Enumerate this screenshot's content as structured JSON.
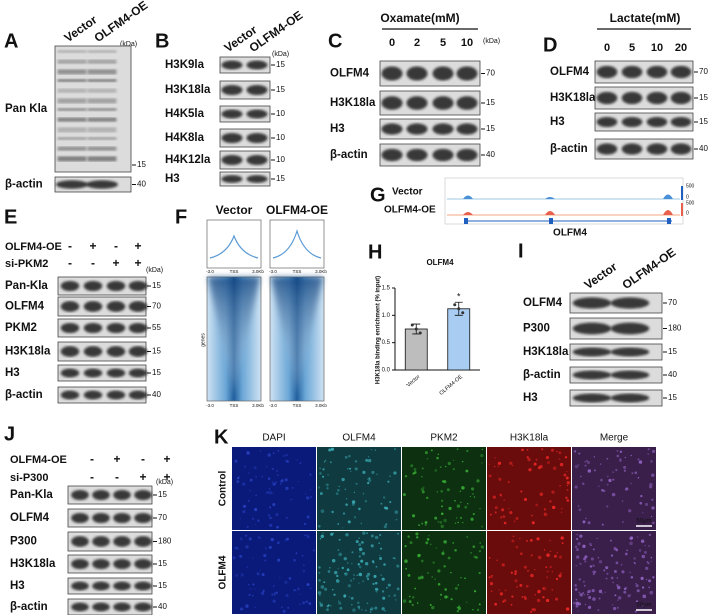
{
  "panels": {
    "A": {
      "label": "A",
      "lanes": [
        "Vector",
        "OLFM4-OE"
      ],
      "unit": "(kDa)",
      "rows": [
        {
          "name": "Pan Kla",
          "marker": "15"
        },
        {
          "name": "β-actin",
          "marker": "40"
        }
      ]
    },
    "B": {
      "label": "B",
      "lanes": [
        "Vector",
        "OLFM4-OE"
      ],
      "unit": "(kDa)",
      "rows": [
        {
          "name": "H3K9la",
          "marker": "15"
        },
        {
          "name": "H3K18la",
          "marker": "15"
        },
        {
          "name": "H4K5la",
          "marker": "10"
        },
        {
          "name": "H4K8la",
          "marker": "10"
        },
        {
          "name": "H4K12la",
          "marker": "10"
        },
        {
          "name": "H3",
          "marker": "15"
        }
      ]
    },
    "C": {
      "label": "C",
      "treatment": "Oxamate(mM)",
      "lanes": [
        "0",
        "2",
        "5",
        "10"
      ],
      "unit": "(kDa)",
      "rows": [
        {
          "name": "OLFM4",
          "marker": "70"
        },
        {
          "name": "H3K18la",
          "marker": "15"
        },
        {
          "name": "H3",
          "marker": "15"
        },
        {
          "name": "β-actin",
          "marker": "40"
        }
      ]
    },
    "D": {
      "label": "D",
      "treatment": "Lactate(mM)",
      "lanes": [
        "0",
        "5",
        "10",
        "20"
      ],
      "rows": [
        {
          "name": "OLFM4",
          "marker": "70"
        },
        {
          "name": "H3K18la",
          "marker": "15"
        },
        {
          "name": "H3",
          "marker": "15"
        },
        {
          "name": "β-actin",
          "marker": "40"
        }
      ]
    },
    "E": {
      "label": "E",
      "conditions": [
        {
          "name": "OLFM4-OE",
          "signs": [
            "-",
            "+",
            "-",
            "+"
          ]
        },
        {
          "name": "si-PKM2",
          "signs": [
            "-",
            "-",
            "+",
            "+"
          ]
        }
      ],
      "unit": "(kDa)",
      "rows": [
        {
          "name": "Pan-Kla",
          "marker": "15"
        },
        {
          "name": "OLFM4",
          "marker": "70"
        },
        {
          "name": "PKM2",
          "marker": "55"
        },
        {
          "name": "H3K18la",
          "marker": "15"
        },
        {
          "name": "H3",
          "marker": "15"
        },
        {
          "name": "β-actin",
          "marker": "40"
        }
      ]
    },
    "F": {
      "label": "F",
      "groups": [
        "Vector",
        "OLFM4-OE"
      ],
      "axis": [
        "-3.0",
        "TSS",
        "3.0Kb"
      ],
      "row_label": "genes"
    },
    "G": {
      "label": "G",
      "tracks": [
        "Vector",
        "OLFM4-OE"
      ],
      "scale": [
        "500",
        "0",
        "500",
        "0"
      ],
      "gene": "OLFM4"
    },
    "H": {
      "label": "H",
      "chart": {
        "type": "bar",
        "title": "OLFM4",
        "y_label": "H3K18la binding enrichment (% input)",
        "categories": [
          "Vector",
          "OLFM4-OE"
        ],
        "values": [
          0.75,
          1.12
        ],
        "errors": [
          0.09,
          0.12
        ],
        "colors": [
          "#bdbdbd",
          "#a9cdf2"
        ],
        "ylim": [
          0,
          1.5
        ],
        "yticks": [
          {
            "value": 0,
            "label": "0.0"
          },
          {
            "value": 0.5,
            "label": "0.5"
          },
          {
            "value": 1,
            "label": "1.0"
          },
          {
            "value": 1.5,
            "label": "1.5"
          }
        ],
        "annotation": "*"
      }
    },
    "I": {
      "label": "I",
      "lanes": [
        "Vector",
        "OLFM4-OE"
      ],
      "rows": [
        {
          "name": "OLFM4",
          "marker": "70"
        },
        {
          "name": "P300",
          "marker": "180"
        },
        {
          "name": "H3K18la",
          "marker": "15"
        },
        {
          "name": "β-actin",
          "marker": "40"
        },
        {
          "name": "H3",
          "marker": "15"
        }
      ]
    },
    "J": {
      "label": "J",
      "conditions": [
        {
          "name": "OLFM4-OE",
          "signs": [
            "-",
            "+",
            "-",
            "+"
          ]
        },
        {
          "name": "si-P300",
          "signs": [
            "-",
            "-",
            "+",
            "+"
          ]
        }
      ],
      "unit": "(kDa)",
      "rows": [
        {
          "name": "Pan-Kla",
          "marker": "15"
        },
        {
          "name": "OLFM4",
          "marker": "70"
        },
        {
          "name": "P300",
          "marker": "180"
        },
        {
          "name": "H3K18la",
          "marker": "15"
        },
        {
          "name": "H3",
          "marker": "15"
        },
        {
          "name": "β-actin",
          "marker": "40"
        }
      ]
    },
    "K": {
      "label": "K",
      "columns": [
        "DAPI",
        "OLFM4",
        "PKM2",
        "H3K18la",
        "Merge"
      ],
      "rows": [
        "Control",
        "OLFM4"
      ],
      "scale_bar": "50μm"
    }
  }
}
